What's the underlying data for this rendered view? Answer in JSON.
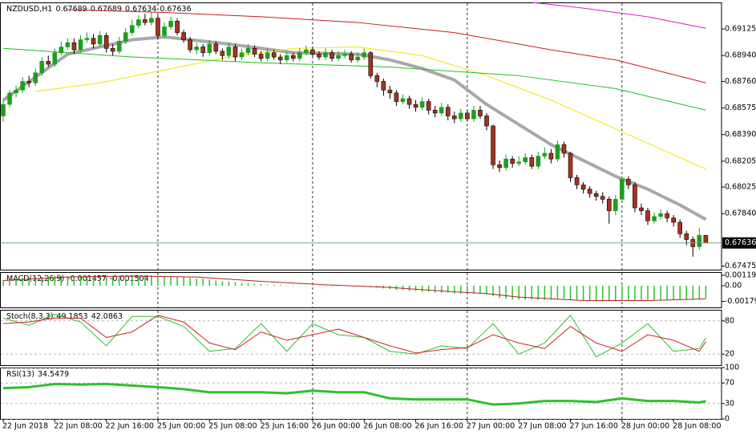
{
  "chart_data": [
    {
      "type": "candlestick",
      "symbol": "NZDUSD,H1",
      "categories": [
        "22 Jun 2018",
        null,
        null,
        null,
        null,
        null,
        null,
        null,
        "22 Jun 08:00",
        null,
        null,
        null,
        null,
        null,
        null,
        null,
        "22 Jun 16:00",
        null,
        null,
        null,
        null,
        null,
        null,
        null,
        "25 Jun 00:00",
        null,
        null,
        null,
        null,
        null,
        null,
        null,
        "25 Jun 08:00",
        null,
        null,
        null,
        null,
        null,
        null,
        null,
        "25 Jun 16:00",
        null,
        null,
        null,
        null,
        null,
        null,
        null,
        "26 Jun 00:00",
        null,
        null,
        null,
        null,
        null,
        null,
        null,
        "26 Jun 08:00",
        null,
        null,
        null,
        null,
        null,
        null,
        null,
        "26 Jun 16:00",
        null,
        null,
        null,
        null,
        null,
        null,
        null,
        "27 Jun 00:00",
        null,
        null,
        null,
        null,
        null,
        null,
        null,
        "27 Jun 08:00",
        null,
        null,
        null,
        null,
        null,
        null,
        null,
        "27 Jun 16:00",
        null,
        null,
        null,
        null,
        null,
        null,
        null,
        "28 Jun 00:00",
        null,
        null,
        null,
        null,
        null,
        null,
        null,
        "28 Jun 08:00",
        null,
        null,
        null,
        null,
        null
      ],
      "open": [
        0.6852,
        0.686,
        0.6868,
        0.687,
        0.6876,
        0.6875,
        0.6882,
        0.689,
        0.6888,
        0.6896,
        0.69,
        0.6903,
        0.6898,
        0.6905,
        0.6906,
        0.6902,
        0.6908,
        0.6899,
        0.6897,
        0.6904,
        0.691,
        0.6915,
        0.6919,
        0.6917,
        0.692,
        0.6908,
        0.6914,
        0.6918,
        0.691,
        0.6905,
        0.6898,
        0.69,
        0.6896,
        0.6902,
        0.6897,
        0.6894,
        0.69,
        0.6893,
        0.6896,
        0.6899,
        0.6895,
        0.6892,
        0.6896,
        0.6893,
        0.6891,
        0.6894,
        0.6892,
        0.6896,
        0.6898,
        0.6895,
        0.6893,
        0.6896,
        0.6892,
        0.6894,
        0.6895,
        0.6891,
        0.6893,
        0.6896,
        0.688,
        0.6876,
        0.687,
        0.6868,
        0.6862,
        0.6864,
        0.686,
        0.6858,
        0.6862,
        0.6856,
        0.6854,
        0.6858,
        0.6852,
        0.685,
        0.6854,
        0.685,
        0.6856,
        0.6852,
        0.6845,
        0.6818,
        0.6816,
        0.6822,
        0.6819,
        0.682,
        0.6823,
        0.6817,
        0.6824,
        0.6826,
        0.6822,
        0.6832,
        0.6826,
        0.6809,
        0.6804,
        0.6801,
        0.6798,
        0.6796,
        0.6794,
        0.6786,
        0.6794,
        0.6808,
        0.6804,
        0.6788,
        0.6786,
        0.6779,
        0.6782,
        0.6784,
        0.6781,
        0.6778,
        0.677,
        0.6766,
        0.6761,
        0.67689
      ],
      "high": [
        0.6863,
        0.687,
        0.6873,
        0.6879,
        0.688,
        0.6885,
        0.6893,
        0.6894,
        0.6899,
        0.6904,
        0.6906,
        0.6906,
        0.6908,
        0.691,
        0.6909,
        0.6911,
        0.691,
        0.6902,
        0.6907,
        0.6913,
        0.6919,
        0.6922,
        0.6923,
        0.6924,
        0.6922,
        0.6917,
        0.6921,
        0.692,
        0.6912,
        0.6907,
        0.6903,
        0.6902,
        0.6905,
        0.6904,
        0.6899,
        0.6903,
        0.6902,
        0.6899,
        0.6902,
        0.6901,
        0.6897,
        0.6899,
        0.6898,
        0.6895,
        0.6897,
        0.6896,
        0.6899,
        0.6901,
        0.69,
        0.6897,
        0.6899,
        0.6898,
        0.6897,
        0.6898,
        0.6897,
        0.6896,
        0.6899,
        0.6897,
        0.6882,
        0.6878,
        0.6873,
        0.687,
        0.6867,
        0.6866,
        0.6863,
        0.6865,
        0.6864,
        0.6859,
        0.6861,
        0.686,
        0.6855,
        0.6857,
        0.6856,
        0.6859,
        0.6859,
        0.6854,
        0.6846,
        0.6821,
        0.6825,
        0.6824,
        0.6824,
        0.6826,
        0.6825,
        0.6827,
        0.683,
        0.6829,
        0.6835,
        0.6834,
        0.6827,
        0.6811,
        0.6806,
        0.6803,
        0.68,
        0.6799,
        0.6796,
        0.6797,
        0.681,
        0.681,
        0.6806,
        0.6791,
        0.6788,
        0.6785,
        0.6787,
        0.6786,
        0.6783,
        0.678,
        0.6772,
        0.6768,
        0.6774,
        0.67689
      ],
      "low": [
        0.6848,
        0.6858,
        0.6865,
        0.6868,
        0.6872,
        0.6873,
        0.688,
        0.6886,
        0.6886,
        0.6894,
        0.6898,
        0.6895,
        0.6896,
        0.6903,
        0.6899,
        0.69,
        0.6896,
        0.6894,
        0.6895,
        0.6902,
        0.6908,
        0.6913,
        0.6915,
        0.6915,
        0.6905,
        0.6906,
        0.6912,
        0.6908,
        0.6903,
        0.6896,
        0.6895,
        0.6893,
        0.6894,
        0.6895,
        0.6891,
        0.6892,
        0.689,
        0.6891,
        0.6894,
        0.6893,
        0.689,
        0.689,
        0.6891,
        0.6888,
        0.6889,
        0.689,
        0.689,
        0.6894,
        0.6893,
        0.6891,
        0.6891,
        0.689,
        0.689,
        0.6892,
        0.6889,
        0.6889,
        0.6891,
        0.6878,
        0.6872,
        0.6866,
        0.6864,
        0.6859,
        0.686,
        0.6857,
        0.6855,
        0.6856,
        0.6853,
        0.6851,
        0.6852,
        0.6849,
        0.6847,
        0.6848,
        0.6848,
        0.6848,
        0.685,
        0.6842,
        0.6815,
        0.6813,
        0.6814,
        0.6816,
        0.6817,
        0.6818,
        0.6815,
        0.6815,
        0.6822,
        0.6819,
        0.682,
        0.6823,
        0.6806,
        0.6801,
        0.6798,
        0.6795,
        0.6793,
        0.6791,
        0.6777,
        0.6783,
        0.6792,
        0.6801,
        0.6785,
        0.6783,
        0.6776,
        0.6777,
        0.678,
        0.6778,
        0.6775,
        0.6767,
        0.6762,
        0.6754,
        0.6759,
        0.67634
      ],
      "close": [
        0.686,
        0.6868,
        0.687,
        0.6876,
        0.6875,
        0.6882,
        0.689,
        0.6888,
        0.6896,
        0.69,
        0.6903,
        0.6898,
        0.6905,
        0.6906,
        0.6902,
        0.6908,
        0.6899,
        0.6897,
        0.6904,
        0.691,
        0.6915,
        0.6919,
        0.6917,
        0.692,
        0.6908,
        0.6914,
        0.6918,
        0.691,
        0.6905,
        0.6898,
        0.69,
        0.6896,
        0.6902,
        0.6897,
        0.6894,
        0.69,
        0.6893,
        0.6896,
        0.6899,
        0.6895,
        0.6892,
        0.6896,
        0.6893,
        0.6891,
        0.6894,
        0.6892,
        0.6896,
        0.6898,
        0.6895,
        0.6893,
        0.6896,
        0.6892,
        0.6894,
        0.6895,
        0.6891,
        0.6893,
        0.6896,
        0.688,
        0.6876,
        0.687,
        0.6868,
        0.6862,
        0.6864,
        0.686,
        0.6858,
        0.6862,
        0.6856,
        0.6854,
        0.6858,
        0.6852,
        0.685,
        0.6854,
        0.685,
        0.6856,
        0.6852,
        0.6845,
        0.6818,
        0.6816,
        0.6822,
        0.6819,
        0.682,
        0.6823,
        0.6817,
        0.6824,
        0.6826,
        0.6822,
        0.6832,
        0.6826,
        0.6809,
        0.6804,
        0.6801,
        0.6798,
        0.6796,
        0.6794,
        0.6786,
        0.6794,
        0.6808,
        0.6804,
        0.6788,
        0.6786,
        0.6779,
        0.6782,
        0.6784,
        0.6781,
        0.6778,
        0.677,
        0.6766,
        0.6761,
        0.67689,
        0.67636
      ],
      "up_color": "#1e9e1e",
      "down_color": "#a8321e",
      "series": [
        {
          "color": "#a8a8a8",
          "line_width": 4,
          "x": [
            0,
            10,
            20,
            25,
            35,
            45,
            55,
            60,
            65,
            70,
            75,
            80,
            85,
            90,
            95,
            100,
            105,
            109
          ],
          "values": [
            0.6863,
            0.6895,
            0.6905,
            0.6907,
            0.6902,
            0.6896,
            0.6895,
            0.6891,
            0.6885,
            0.6877,
            0.686,
            0.6846,
            0.6832,
            0.6821,
            0.681,
            0.6801,
            0.679,
            0.678
          ]
        },
        {
          "color": "#f2e600",
          "line_width": 1,
          "x": [
            5,
            15,
            25,
            35,
            45,
            55,
            65,
            75,
            85,
            95,
            109
          ],
          "values": [
            0.6869,
            0.6875,
            0.6884,
            0.6893,
            0.6899,
            0.69,
            0.6894,
            0.688,
            0.6863,
            0.6843,
            0.6815
          ]
        },
        {
          "color": "#22c022",
          "line_width": 1,
          "x": [
            0,
            20,
            40,
            60,
            80,
            95,
            109
          ],
          "values": [
            0.6899,
            0.6893,
            0.6889,
            0.6886,
            0.688,
            0.6871,
            0.6856
          ]
        },
        {
          "color": "#c81e1e",
          "line_width": 1,
          "x": [
            10,
            25,
            40,
            55,
            70,
            85,
            95,
            109
          ],
          "values": [
            0.6926,
            0.6924,
            0.6921,
            0.6917,
            0.691,
            0.6898,
            0.6891,
            0.6875
          ]
        },
        {
          "color": "#d020d0",
          "line_width": 1,
          "x": [
            82,
            90,
            100,
            109
          ],
          "values": [
            0.6931,
            0.6927,
            0.6921,
            0.6913
          ]
        }
      ],
      "ylim": [
        0.6745,
        0.6931
      ],
      "yticks": [
        0.69125,
        {
          "value": 0.6894,
          "label": "0.68940"
        },
        {
          "value": 0.6876,
          "label": "0.68760"
        },
        0.68575,
        {
          "value": 0.6839,
          "label": "0.68390"
        },
        0.68205,
        0.68025,
        {
          "value": 0.6784,
          "label": "0.67840"
        },
        0.67475
      ]
    },
    {
      "type": "macd",
      "title": "MACD(12,26,9)",
      "values": [
        0.0006,
        0.0007,
        0.0008,
        0.0009,
        0.0009,
        0.001,
        0.001,
        0.0011,
        0.0011,
        0.0011,
        0.0011,
        0.0011,
        0.0011,
        0.0011,
        0.0011,
        0.0011,
        0.0011,
        0.0011,
        0.0011,
        0.0011,
        0.0011,
        0.0011,
        0.0012,
        0.0012,
        0.0011,
        0.0011,
        0.0011,
        0.001,
        0.001,
        0.0009,
        0.0008,
        0.0008,
        0.0007,
        0.0006,
        0.0005,
        0.0005,
        0.0004,
        0.0003,
        0.0003,
        0.0002,
        0.0002,
        0.0001,
        0.0001,
        0.0001,
        0,
        0,
        0,
        0,
        0,
        0,
        0,
        0,
        0,
        0,
        0,
        0,
        0,
        -0.0001,
        -0.0002,
        -0.0003,
        -0.0004,
        -0.0005,
        -0.0005,
        -0.0006,
        -0.0006,
        -0.0007,
        -0.0007,
        -0.0008,
        -0.0008,
        -0.0008,
        -0.0009,
        -0.0009,
        -0.0009,
        -0.0009,
        -0.0009,
        -0.001,
        -0.0012,
        -0.0014,
        -0.0015,
        -0.0016,
        -0.0016,
        -0.0016,
        -0.0016,
        -0.0016,
        -0.0016,
        -0.0016,
        -0.0015,
        -0.0015,
        -0.0016,
        -0.0017,
        -0.0017,
        -0.0017,
        -0.0018,
        -0.0018,
        -0.0018,
        -0.0018,
        -0.0017,
        -0.0017,
        -0.0017,
        -0.0017,
        -0.0017,
        -0.0017,
        -0.0017,
        -0.0016,
        -0.0016,
        -0.0016,
        -0.0016,
        -0.0016,
        -0.0015,
        -0.001457
      ],
      "color": "#2ec02e",
      "signal": {
        "color": "#b22222",
        "x": [
          0,
          10,
          20,
          30,
          40,
          50,
          60,
          70,
          75,
          80,
          90,
          100,
          109
        ],
        "values": [
          0.0006,
          0.001,
          0.0011,
          0.001,
          0.0005,
          0.0001,
          -0.0002,
          -0.0007,
          -0.0009,
          -0.0013,
          -0.0017,
          -0.0017,
          -0.001504
        ]
      },
      "ylim": [
        -0.00248,
        0.00156
      ],
      "yticks": [
        0.001194,
        {
          "value": 0,
          "label": "0.00"
        },
        -0.00179
      ]
    },
    {
      "type": "line",
      "title": "Stoch(8,3,3)",
      "series": [
        {
          "color": "#2ec02e",
          "line_width": 1,
          "x": [
            0,
            4,
            8,
            12,
            16,
            20,
            24,
            28,
            32,
            36,
            40,
            44,
            48,
            52,
            56,
            60,
            64,
            68,
            72,
            76,
            80,
            84,
            88,
            92,
            96,
            100,
            104,
            108,
            109
          ],
          "values": [
            85,
            72,
            92,
            78,
            35,
            88,
            88,
            70,
            25,
            30,
            75,
            25,
            75,
            55,
            50,
            25,
            20,
            35,
            30,
            75,
            20,
            40,
            90,
            15,
            40,
            75,
            25,
            30,
            49.1853
          ]
        },
        {
          "color": "#d02020",
          "line_width": 1,
          "x": [
            0,
            4,
            8,
            12,
            16,
            20,
            24,
            28,
            32,
            36,
            40,
            44,
            48,
            52,
            56,
            60,
            64,
            68,
            72,
            76,
            80,
            84,
            88,
            92,
            96,
            100,
            104,
            108,
            109
          ],
          "values": [
            75,
            78,
            85,
            85,
            50,
            60,
            90,
            78,
            40,
            28,
            60,
            45,
            55,
            65,
            50,
            35,
            22,
            28,
            32,
            55,
            40,
            30,
            70,
            40,
            25,
            55,
            45,
            25,
            42.0863
          ]
        }
      ],
      "ylim": [
        0,
        100
      ],
      "yticks": [
        80,
        20
      ],
      "grid": true
    },
    {
      "type": "line",
      "title": "RSI(13)",
      "series": [
        {
          "color": "#2ec02e",
          "line_width": 3,
          "x": [
            0,
            4,
            8,
            12,
            16,
            20,
            24,
            28,
            32,
            36,
            40,
            44,
            48,
            52,
            56,
            60,
            64,
            68,
            72,
            76,
            80,
            84,
            88,
            92,
            96,
            100,
            104,
            108,
            109
          ],
          "values": [
            60,
            62,
            68,
            67,
            68,
            65,
            62,
            58,
            52,
            52,
            52,
            50,
            55,
            52,
            52,
            40,
            38,
            38,
            38,
            28,
            30,
            35,
            35,
            33,
            40,
            35,
            35,
            32,
            34.5479
          ]
        }
      ],
      "ylim": [
        0,
        100
      ],
      "yticks": [
        100,
        70,
        30,
        0
      ],
      "grid": true
    }
  ]
}
